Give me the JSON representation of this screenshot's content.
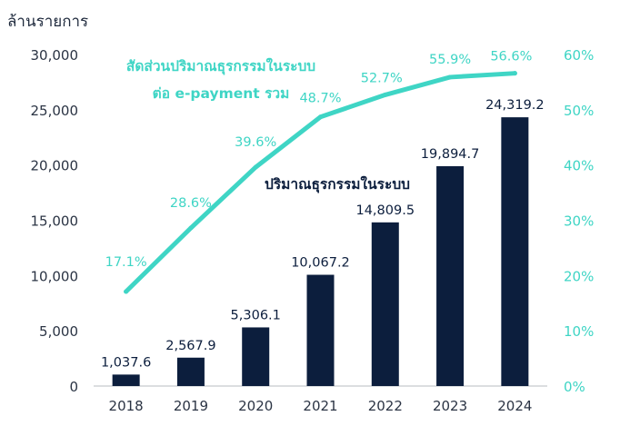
{
  "labels": {
    "unit": "ล้านรายการ",
    "line_title_1": "สัดส่วนปริมาณธุรกรรมในระบบ",
    "line_title_2": "ต่อ e-payment รวม",
    "bar_title": "ปริมาณธุรกรรมในระบบ"
  },
  "colors": {
    "bar": "#0c1e3d",
    "line": "#3fd5c5",
    "axis_text": "#2b3444",
    "right_axis_text": "#3fd5c5",
    "baseline": "#b8bcc2"
  },
  "chart_data": {
    "type": "bar",
    "categories": [
      "2018",
      "2019",
      "2020",
      "2021",
      "2022",
      "2023",
      "2024"
    ],
    "series": [
      {
        "name": "ปริมาณธุรกรรมในระบบ",
        "type": "bar",
        "axis": "left",
        "values": [
          1037.6,
          2567.9,
          5306.1,
          10067.2,
          14809.5,
          19894.7,
          24319.2
        ],
        "data_labels": [
          "1,037.6",
          "2,567.9",
          "5,306.1",
          "10,067.2",
          "14,809.5",
          "19,894.7",
          "24,319.2"
        ]
      },
      {
        "name": "สัดส่วนปริมาณธุรกรรมในระบบ ต่อ e-payment รวม",
        "type": "line",
        "axis": "right",
        "values": [
          17.1,
          28.6,
          39.6,
          48.7,
          52.7,
          55.9,
          56.6
        ],
        "data_labels": [
          "17.1%",
          "28.6%",
          "39.6%",
          "48.7%",
          "52.7%",
          "55.9%",
          "56.6%"
        ]
      }
    ],
    "ylabel": "ล้านรายการ",
    "ylim": [
      0,
      30000
    ],
    "y_ticks": [
      "0",
      "5,000",
      "10,000",
      "15,000",
      "20,000",
      "25,000",
      "30,000"
    ],
    "y2lim": [
      0,
      60
    ],
    "y2_ticks": [
      "0%",
      "10%",
      "20%",
      "30%",
      "40%",
      "50%",
      "60%"
    ],
    "grid": false,
    "legend": "inline labels"
  }
}
